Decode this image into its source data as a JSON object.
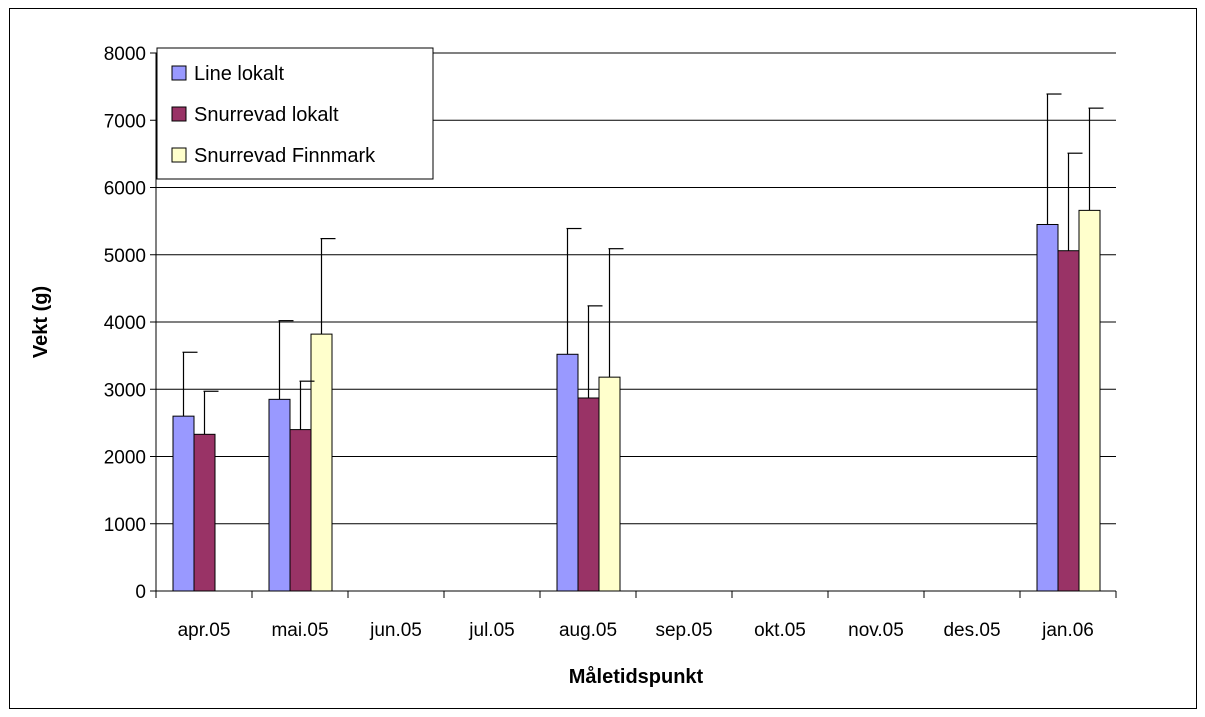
{
  "chart_data": {
    "type": "bar",
    "title": "",
    "xlabel": "Måletidspunkt",
    "ylabel": "Vekt (g)",
    "ylim": [
      0,
      8000
    ],
    "yticks": [
      0,
      1000,
      2000,
      3000,
      4000,
      5000,
      6000,
      7000,
      8000
    ],
    "grid": true,
    "legend_position": "top-left",
    "categories": [
      "apr.05",
      "mai.05",
      "jun.05",
      "jul.05",
      "aug.05",
      "sep.05",
      "okt.05",
      "nov.05",
      "des.05",
      "jan.06"
    ],
    "series": [
      {
        "name": "Line lokalt",
        "color": "#9999ff",
        "values": [
          2600,
          2850,
          null,
          null,
          3520,
          null,
          null,
          null,
          null,
          5450
        ],
        "error_upper": [
          3550,
          4020,
          null,
          null,
          5390,
          null,
          null,
          null,
          null,
          7390
        ]
      },
      {
        "name": "Snurrevad lokalt",
        "color": "#993366",
        "values": [
          2330,
          2400,
          null,
          null,
          2870,
          null,
          null,
          null,
          null,
          5060
        ],
        "error_upper": [
          2970,
          3120,
          null,
          null,
          4240,
          null,
          null,
          null,
          null,
          6510
        ]
      },
      {
        "name": "Snurrevad Finnmark",
        "color": "#ffffcc",
        "values": [
          null,
          3820,
          null,
          null,
          3180,
          null,
          null,
          null,
          null,
          5660
        ],
        "error_upper": [
          null,
          5240,
          null,
          null,
          5090,
          null,
          null,
          null,
          null,
          7180
        ]
      }
    ]
  }
}
